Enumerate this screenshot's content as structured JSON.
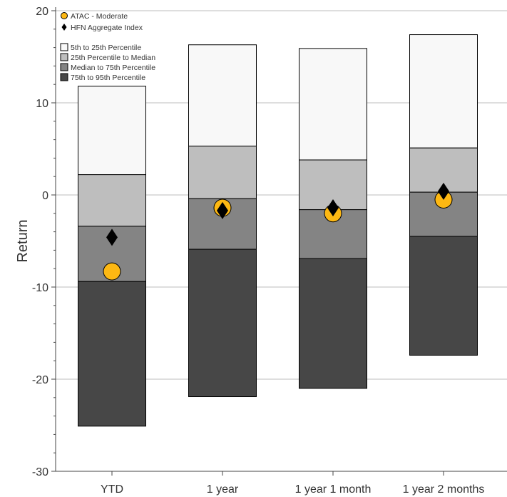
{
  "chart_data": {
    "type": "bar",
    "subtype": "floating-stacked-percentile",
    "ylabel": "Return",
    "xlabel": "",
    "ylim": [
      -30,
      20
    ],
    "yticks": [
      -30,
      -20,
      -10,
      0,
      10,
      20
    ],
    "grid": true,
    "legend_position": "top-left",
    "categories": [
      "YTD",
      "1 year",
      "1 year 1 month",
      "1 year 2 months"
    ],
    "bands": [
      {
        "name": "5th to 25th Percentile",
        "color": "#f8f8f8",
        "lower": [
          2.2,
          5.3,
          3.8,
          5.1
        ],
        "upper": [
          11.8,
          16.3,
          15.9,
          17.4
        ]
      },
      {
        "name": "25th Percentile to Median",
        "color": "#bebebe",
        "lower": [
          -3.4,
          -0.4,
          -1.6,
          0.3
        ],
        "upper": [
          2.2,
          5.3,
          3.8,
          5.1
        ]
      },
      {
        "name": "Median to 75th Percentile",
        "color": "#848484",
        "lower": [
          -9.4,
          -5.9,
          -6.9,
          -4.5
        ],
        "upper": [
          -3.4,
          -0.4,
          -1.6,
          0.3
        ]
      },
      {
        "name": "75th to 95th Percentile",
        "color": "#474747",
        "lower": [
          -25.1,
          -21.9,
          -21.0,
          -17.4
        ],
        "upper": [
          -9.4,
          -5.9,
          -6.9,
          -4.5
        ]
      }
    ],
    "series": [
      {
        "name": "ATAC - Moderate",
        "marker": "circle",
        "color": "#fdb813",
        "values": [
          -8.3,
          -1.4,
          -2.0,
          -0.5
        ]
      },
      {
        "name": "HFN Aggregate Index",
        "marker": "diamond",
        "color": "#000000",
        "values": [
          -4.6,
          -1.7,
          -1.4,
          0.4
        ]
      }
    ]
  }
}
